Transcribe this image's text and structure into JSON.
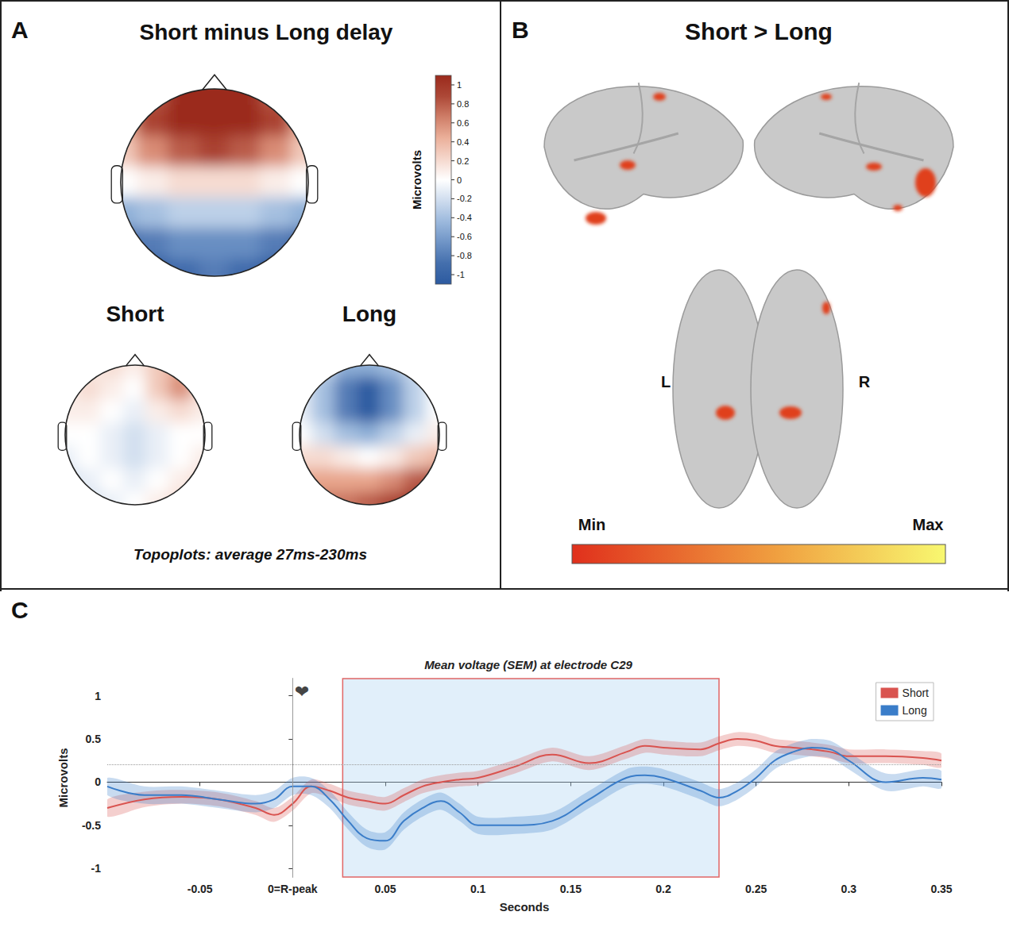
{
  "panel_a": {
    "panel_label": "A",
    "title": "Short minus Long delay",
    "caption": "Topoplots: average 27ms-230ms",
    "colorbar": {
      "label": "Microvolts",
      "lim": [
        -1.1,
        1.1
      ],
      "ticks": [
        1,
        0.8,
        0.6,
        0.4,
        0.2,
        0,
        -0.2,
        -0.4,
        -0.6,
        -0.8,
        -1
      ]
    },
    "difference": {
      "cells": [
        [
          0.6,
          0.8,
          1,
          1,
          1,
          0.8,
          0.6
        ],
        [
          0.5,
          0.9,
          1,
          1,
          1,
          0.9,
          0.5
        ],
        [
          0.3,
          0.6,
          0.8,
          0.9,
          0.8,
          0.6,
          0.3
        ],
        [
          0,
          0.1,
          0.2,
          0.2,
          0.2,
          0.1,
          0
        ],
        [
          -0.5,
          -0.4,
          -0.3,
          -0.3,
          -0.3,
          -0.4,
          -0.5
        ],
        [
          -0.9,
          -0.8,
          -0.7,
          -0.7,
          -0.7,
          -0.8,
          -0.9
        ],
        [
          -1,
          -1,
          -0.9,
          -0.8,
          -0.9,
          -1,
          -1
        ]
      ]
    },
    "short": {
      "title": "Short",
      "cells": [
        [
          0,
          0.1,
          0.2,
          0.1,
          0.3,
          0.5,
          0.2
        ],
        [
          0.1,
          0.2,
          0.1,
          0,
          0.3,
          0.6,
          0.2
        ],
        [
          0.1,
          0.1,
          0,
          -0.1,
          0.1,
          0.2,
          0.1
        ],
        [
          0,
          0,
          -0.1,
          -0.2,
          -0.1,
          0,
          0
        ],
        [
          -0.1,
          0,
          -0.1,
          -0.2,
          -0.1,
          0,
          0.1
        ],
        [
          -0.2,
          -0.1,
          0,
          -0.1,
          0,
          0.1,
          0.2
        ],
        [
          -0.2,
          -0.2,
          -0.1,
          0,
          0.1,
          0.2,
          0.2
        ]
      ]
    },
    "long": {
      "title": "Long",
      "cells": [
        [
          0,
          -0.2,
          -0.5,
          -0.5,
          -0.4,
          -0.2,
          0
        ],
        [
          -0.1,
          -0.4,
          -0.8,
          -1,
          -0.7,
          -0.3,
          0
        ],
        [
          -0.1,
          -0.4,
          -0.8,
          -1,
          -0.7,
          -0.3,
          0
        ],
        [
          0,
          -0.2,
          -0.4,
          -0.5,
          -0.3,
          -0.1,
          0.1
        ],
        [
          0.2,
          0.2,
          0.1,
          0,
          0.1,
          0.3,
          0.4
        ],
        [
          0.5,
          0.5,
          0.5,
          0.5,
          0.6,
          0.8,
          0.9
        ],
        [
          0.7,
          0.7,
          0.7,
          0.8,
          0.9,
          1,
          1
        ]
      ]
    }
  },
  "panel_b": {
    "panel_label": "B",
    "title": "Short > Long",
    "hemisphere_labels": [
      "L",
      "R"
    ],
    "colorbar": {
      "labels": [
        "Min",
        "Max"
      ]
    }
  },
  "chart_data": {
    "type": "line",
    "panel_label": "C",
    "title": "Mean voltage (SEM) at electrode C29",
    "xlabel": "Seconds",
    "ylabel": "Microvolts",
    "x": [
      -0.1,
      -0.08,
      -0.06,
      -0.04,
      -0.02,
      -0.01,
      0,
      0.01,
      0.02,
      0.03,
      0.04,
      0.05,
      0.06,
      0.07,
      0.08,
      0.09,
      0.1,
      0.12,
      0.14,
      0.16,
      0.18,
      0.19,
      0.2,
      0.22,
      0.23,
      0.24,
      0.25,
      0.26,
      0.27,
      0.28,
      0.29,
      0.3,
      0.32,
      0.34,
      0.35
    ],
    "series": [
      {
        "name": "Short",
        "color": "#d9534f",
        "values": [
          -0.3,
          -0.2,
          -0.17,
          -0.2,
          -0.3,
          -0.38,
          -0.25,
          -0.05,
          -0.1,
          -0.18,
          -0.22,
          -0.25,
          -0.15,
          -0.05,
          0,
          0.03,
          0.05,
          0.18,
          0.32,
          0.22,
          0.35,
          0.42,
          0.4,
          0.38,
          0.45,
          0.5,
          0.48,
          0.42,
          0.4,
          0.38,
          0.35,
          0.3,
          0.3,
          0.28,
          0.25
        ],
        "sem": [
          0.1,
          0.09,
          0.08,
          0.08,
          0.08,
          0.08,
          0.08,
          0.08,
          0.08,
          0.08,
          0.08,
          0.08,
          0.08,
          0.08,
          0.08,
          0.08,
          0.08,
          0.08,
          0.08,
          0.08,
          0.08,
          0.08,
          0.08,
          0.08,
          0.08,
          0.08,
          0.08,
          0.08,
          0.08,
          0.08,
          0.08,
          0.08,
          0.08,
          0.08,
          0.08
        ]
      },
      {
        "name": "Long",
        "color": "#3a7dc9",
        "values": [
          -0.05,
          -0.15,
          -0.15,
          -0.2,
          -0.25,
          -0.2,
          -0.05,
          -0.05,
          -0.2,
          -0.45,
          -0.65,
          -0.68,
          -0.45,
          -0.3,
          -0.22,
          -0.35,
          -0.5,
          -0.5,
          -0.45,
          -0.2,
          0.05,
          0.08,
          0.05,
          -0.1,
          -0.18,
          -0.1,
          0.05,
          0.25,
          0.35,
          0.4,
          0.38,
          0.25,
          0,
          0.05,
          0.03
        ],
        "sem": [
          0.1,
          0.1,
          0.1,
          0.1,
          0.1,
          0.1,
          0.1,
          0.1,
          0.1,
          0.1,
          0.1,
          0.1,
          0.1,
          0.1,
          0.1,
          0.1,
          0.1,
          0.1,
          0.1,
          0.1,
          0.1,
          0.1,
          0.1,
          0.1,
          0.1,
          0.1,
          0.1,
          0.1,
          0.1,
          0.1,
          0.1,
          0.1,
          0.1,
          0.1,
          0.1
        ]
      }
    ],
    "xlim": [
      -0.1,
      0.35
    ],
    "xticks": [
      -0.05,
      {
        "value": 0,
        "label": "0=R-peak"
      },
      0.05,
      0.1,
      0.15,
      0.2,
      0.25,
      0.3,
      0.35
    ],
    "ylim": [
      -1.1,
      1.2
    ],
    "yticks": [
      -1,
      -0.5,
      0,
      0.5,
      1
    ],
    "grid": false,
    "legend": "upper right",
    "highlight": [
      0.027,
      0.23
    ],
    "vlines": [
      0
    ],
    "hlines": [
      0.2
    ],
    "annotations": [
      {
        "text": "❤",
        "x": 0.005,
        "y": 1.05
      }
    ]
  }
}
